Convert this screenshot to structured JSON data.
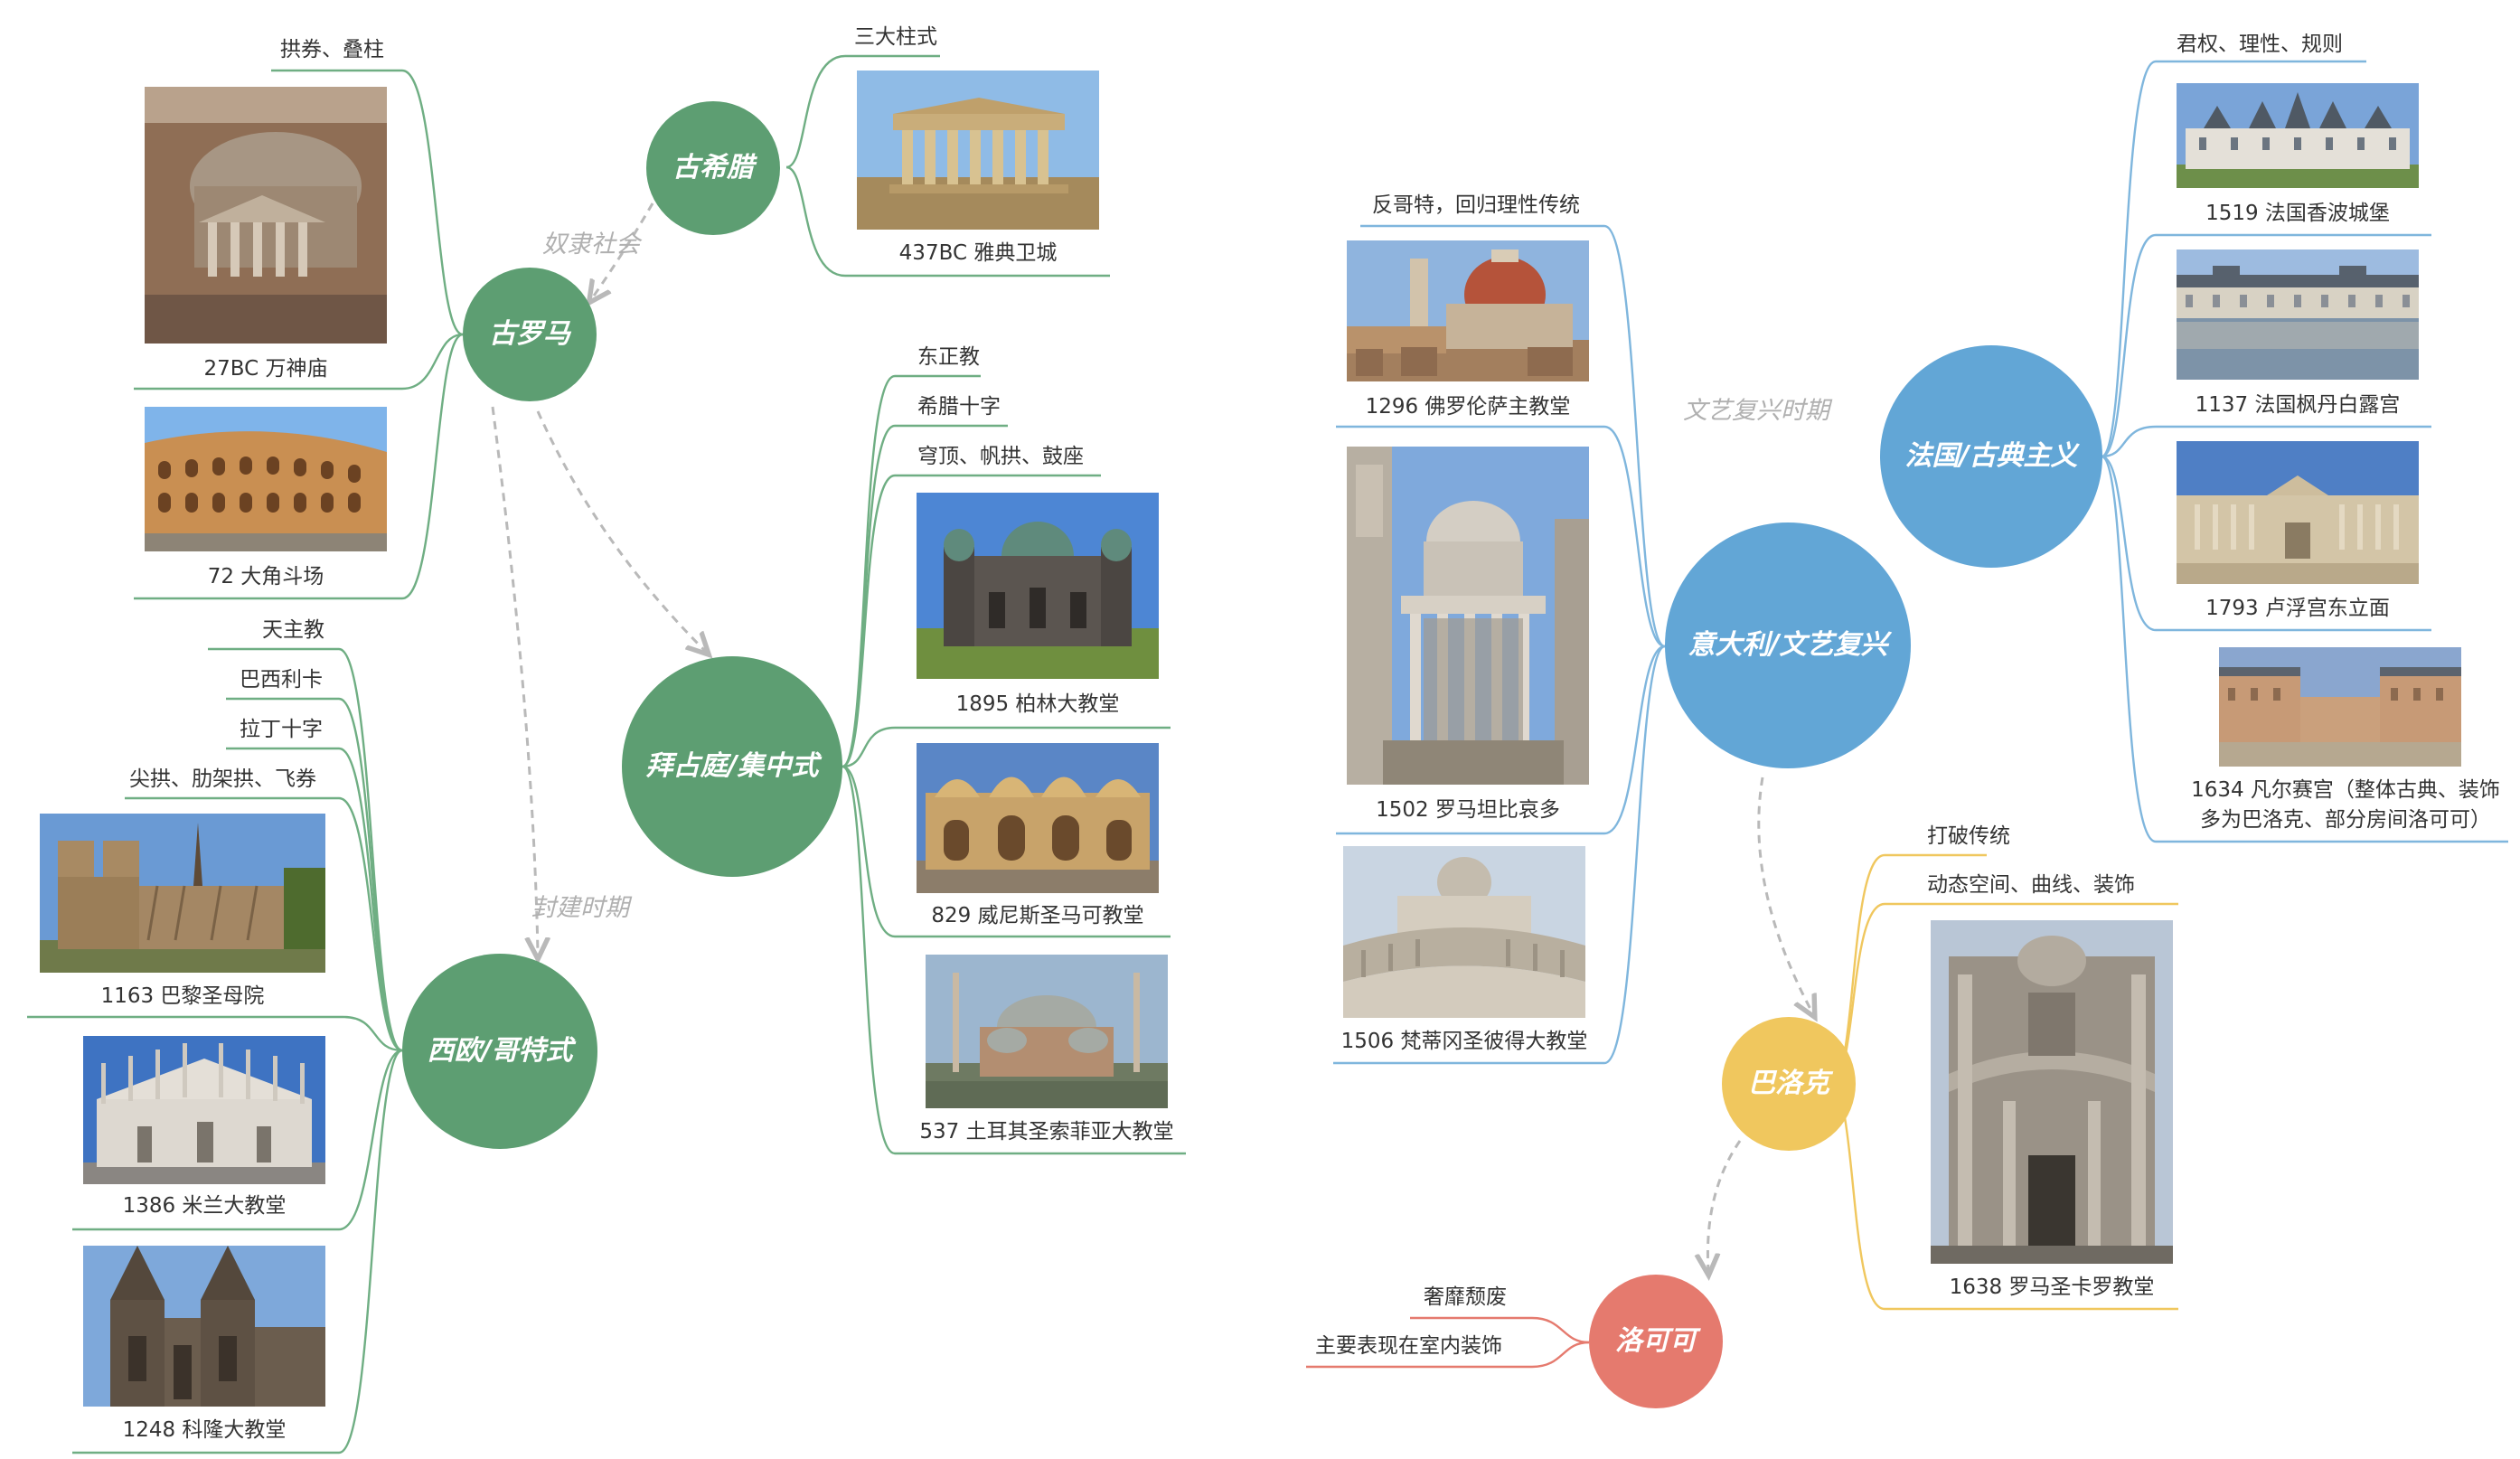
{
  "colors": {
    "green": "#5d9e72",
    "green_line": "#6fae83",
    "blue": "#62a6d6",
    "blue_line": "#7fb6dd",
    "yellow": "#f0c75e",
    "yellow_line": "#f0c75e",
    "red": "#e57a6e",
    "red_line": "#e57a6e",
    "dash": "#b9b9b9"
  },
  "eras": {
    "slave_society": "奴隶社会",
    "feudal": "封建时期",
    "renaissance_period": "文艺复兴时期"
  },
  "nodes": {
    "ancient_greece": {
      "title": "古希腊",
      "features": [
        "三大柱式"
      ],
      "examples": [
        {
          "caption": "437BC 雅典卫城",
          "icon": "parthenon-photo"
        }
      ]
    },
    "ancient_rome": {
      "title": "古罗马",
      "features": [
        "拱券、叠柱"
      ],
      "examples": [
        {
          "caption": "27BC 万神庙",
          "icon": "pantheon-photo"
        },
        {
          "caption": "72 大角斗场",
          "icon": "colosseum-photo"
        }
      ]
    },
    "byzantine": {
      "title": "拜占庭/集中式",
      "features": [
        "东正教",
        "希腊十字",
        "穹顶、帆拱、鼓座"
      ],
      "examples": [
        {
          "caption": "1895 柏林大教堂",
          "icon": "berlin-cathedral-photo"
        },
        {
          "caption": "829 威尼斯圣马可教堂",
          "icon": "st-marks-photo"
        },
        {
          "caption": "537 土耳其圣索菲亚大教堂",
          "icon": "hagia-sophia-photo"
        }
      ]
    },
    "gothic": {
      "title": "西欧/哥特式",
      "features": [
        "天主教",
        "巴西利卡",
        "拉丁十字",
        "尖拱、肋架拱、飞券"
      ],
      "examples": [
        {
          "caption": "1163 巴黎圣母院",
          "icon": "notre-dame-photo"
        },
        {
          "caption": "1386 米兰大教堂",
          "icon": "milan-cathedral-photo"
        },
        {
          "caption": "1248 科隆大教堂",
          "icon": "cologne-cathedral-photo"
        }
      ]
    },
    "renaissance": {
      "title": "意大利/文艺复兴",
      "features": [
        "反哥特，回归理性传统"
      ],
      "examples": [
        {
          "caption": "1296 佛罗伦萨主教堂",
          "icon": "florence-cathedral-photo"
        },
        {
          "caption": "1502 罗马坦比哀多",
          "icon": "tempietto-photo"
        },
        {
          "caption": "1506 梵蒂冈圣彼得大教堂",
          "icon": "st-peters-photo"
        }
      ]
    },
    "classicism": {
      "title": "法国/古典主义",
      "features": [
        "君权、理性、规则"
      ],
      "examples": [
        {
          "caption": "1519 法国香波城堡",
          "icon": "chambord-photo"
        },
        {
          "caption": "1137 法国枫丹白露宫",
          "icon": "fontainebleau-photo"
        },
        {
          "caption": "1793 卢浮宫东立面",
          "icon": "louvre-photo"
        },
        {
          "caption": "1634 凡尔赛宫（整体古典、装饰多为巴洛克、部分房间洛可可）",
          "caption_line1": "1634 凡尔赛宫（整体古典、装饰",
          "caption_line2": "多为巴洛克、部分房间洛可可）",
          "icon": "versailles-photo"
        }
      ]
    },
    "baroque": {
      "title": "巴洛克",
      "features": [
        "打破传统",
        "动态空间、曲线、装饰"
      ],
      "examples": [
        {
          "caption": "1638 罗马圣卡罗教堂",
          "icon": "san-carlo-photo"
        }
      ]
    },
    "rococo": {
      "title": "洛可可",
      "features": [
        "奢靡颓废",
        "主要表现在室内装饰"
      ]
    }
  }
}
